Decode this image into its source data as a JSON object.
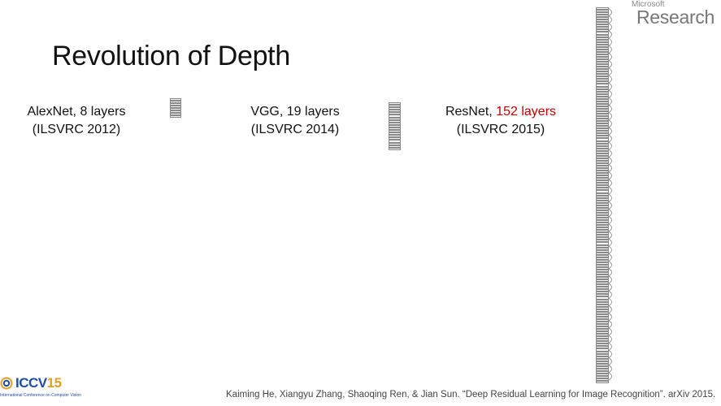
{
  "slide": {
    "title": "Revolution of Depth",
    "logo": {
      "line1": "Microsoft",
      "line2": "Research"
    },
    "citation": "Kaiming He, Xiangyu Zhang, Shaoqing Ren, & Jian Sun. “Deep Residual Learning for Image Recognition”. arXiv 2015.",
    "conference_logo": {
      "name": "ICCV",
      "year": "15",
      "subtitle": "International Conference on Computer Vision"
    }
  },
  "networks": [
    {
      "name": "AlexNet",
      "layers_text": "8 layers",
      "challenge": "(ILSVRC 2012)",
      "layer_count": 8
    },
    {
      "name": "VGG",
      "layers_text": "19 layers",
      "challenge": "(ILSVRC 2014)",
      "layer_count": 19
    },
    {
      "name": "ResNet",
      "layers_text": "152 layers",
      "challenge": "(ILSVRC 2015)",
      "layer_count": 152,
      "highlight_color": "#c00000"
    }
  ]
}
